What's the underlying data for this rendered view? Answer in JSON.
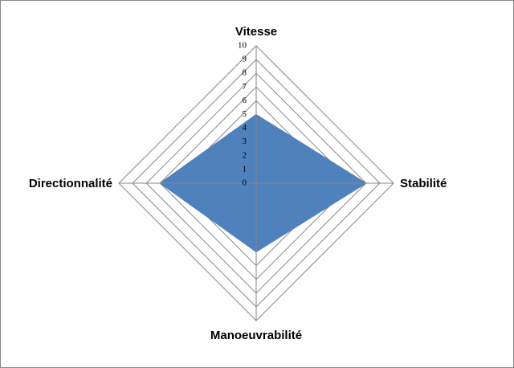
{
  "chart_data": {
    "type": "radar",
    "categories": [
      "Vitesse",
      "Stabilité",
      "Manoeuvrabilité",
      "Directionnalité"
    ],
    "values": [
      5,
      8,
      5,
      7
    ],
    "color": "#4f81bd",
    "rlim": [
      0,
      10
    ],
    "rticks": [
      0,
      1,
      2,
      3,
      4,
      5,
      6,
      7,
      8,
      9,
      10
    ],
    "grid": true
  }
}
